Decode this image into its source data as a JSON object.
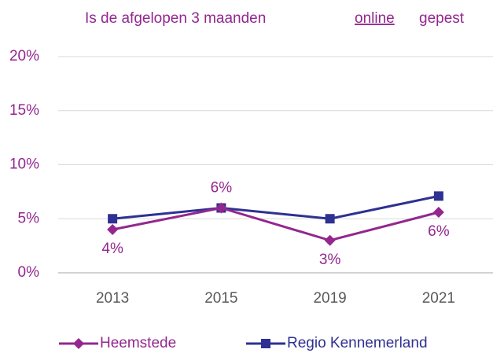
{
  "chart_data": {
    "type": "line",
    "title": [
      "Is de afgelopen 3 maanden",
      "online",
      "gepest"
    ],
    "categories": [
      "2013",
      "2015",
      "2019",
      "2021"
    ],
    "series": [
      {
        "name": "Heemstede",
        "color": "#93278f",
        "marker": "diamond",
        "values": [
          4,
          6,
          3,
          5.6
        ],
        "value_labels": [
          "4%",
          "6%",
          "3%",
          "6%"
        ]
      },
      {
        "name": "Regio Kennemerland",
        "color": "#2e3192",
        "marker": "square",
        "values": [
          5,
          6,
          5,
          7.1
        ]
      }
    ],
    "ylim": [
      0,
      20
    ],
    "yticks": [
      {
        "value": 0,
        "label": "0%"
      },
      {
        "value": 5,
        "label": "5%"
      },
      {
        "value": 10,
        "label": "10%"
      },
      {
        "value": 15,
        "label": "15%"
      },
      {
        "value": 20,
        "label": "20%"
      }
    ],
    "grid": true,
    "legend": "bottom"
  }
}
